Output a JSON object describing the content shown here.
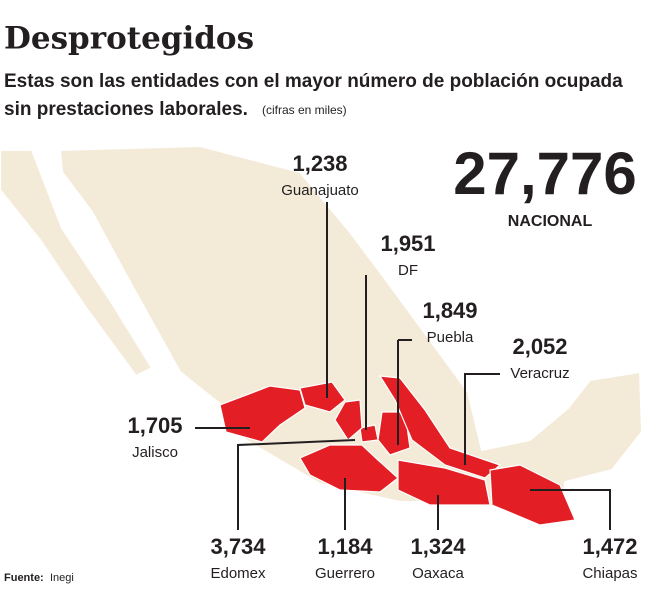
{
  "title": "Desprotegidos",
  "subtitle": [
    "Estas son las entidades con el mayor número de población ocupada",
    "sin prestaciones laborales."
  ],
  "units_note": "(cifras en miles)",
  "national": {
    "value": 27776,
    "label": "27,776",
    "name": "NACIONAL"
  },
  "states": [
    {
      "name": "Guanajuato",
      "value": 1238,
      "label": "1,238"
    },
    {
      "name": "DF",
      "value": 1951,
      "label": "1,951"
    },
    {
      "name": "Puebla",
      "value": 1849,
      "label": "1,849"
    },
    {
      "name": "Veracruz",
      "value": 2052,
      "label": "2,052"
    },
    {
      "name": "Jalisco",
      "value": 1705,
      "label": "1,705"
    },
    {
      "name": "Edomex",
      "value": 3734,
      "label": "3,734"
    },
    {
      "name": "Guerrero",
      "value": 1184,
      "label": "1,184"
    },
    {
      "name": "Oaxaca",
      "value": 1324,
      "label": "1,324"
    },
    {
      "name": "Chiapas",
      "value": 1472,
      "label": "1,472"
    }
  ],
  "source": {
    "label": "Fuente:",
    "text": "Inegi"
  }
}
